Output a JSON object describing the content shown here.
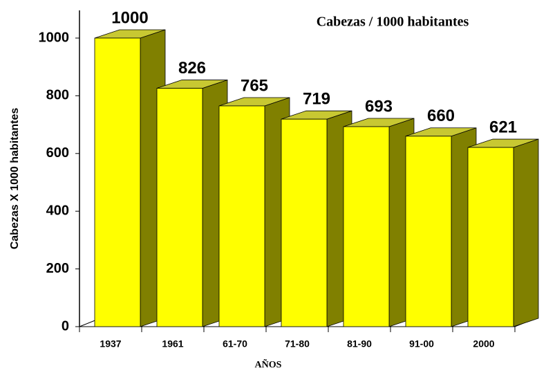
{
  "chart_data": {
    "type": "bar3d",
    "title": "Cabezas / 1000 habitantes",
    "x_label": "AÑOS",
    "y_label": "Cabezas X 1000 habitantes",
    "categories": [
      "1937",
      "1961",
      "61-70",
      "71-80",
      "81-90",
      "91-00",
      "2000"
    ],
    "values": [
      1000,
      826,
      765,
      719,
      693,
      660,
      621
    ],
    "color": "#ffff00",
    "side_color": "#808000",
    "top_color": "#c8c832",
    "ylim": [
      0,
      1000
    ],
    "yticks": [
      0,
      200,
      400,
      600,
      800,
      1000
    ],
    "grid": false
  }
}
